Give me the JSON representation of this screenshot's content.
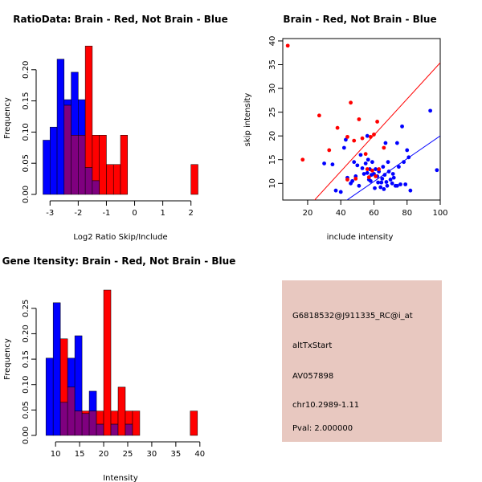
{
  "colors": {
    "red": "#ff0000",
    "blue": "#0000ff",
    "overlap": "#7f007f",
    "panel_bg": "#e8c8c0",
    "pval": "#cc0000"
  },
  "chart_data": [
    {
      "id": "ratio",
      "type": "bar",
      "title": "RatioData: Brain - Red, Not Brain - Blue",
      "xlabel": "Log2 Ratio Skip/Include",
      "ylabel": "Frequency",
      "xlim": [
        -3.35,
        2.35
      ],
      "ylim": [
        0,
        0.25
      ],
      "xticks": [
        -3,
        -2,
        -1,
        0,
        1,
        2
      ],
      "yticks": [
        0.0,
        0.05,
        0.1,
        0.15,
        0.2
      ],
      "ytick_labels": [
        "0.00",
        "0.05",
        "0.10",
        "0.15",
        "0.20"
      ],
      "bin_width": 0.25,
      "bin_starts": [
        -3.25,
        -3.0,
        -2.75,
        -2.5,
        -2.25,
        -2.0,
        -1.75,
        -1.5,
        -1.25,
        -1.0,
        -0.75,
        -0.5,
        -0.25,
        0.0,
        0.25,
        0.5,
        0.75,
        1.0,
        1.25,
        1.5,
        1.75,
        2.0
      ],
      "series": [
        {
          "name": "Not Brain",
          "color": "blue",
          "values": [
            0.087,
            0.108,
            0.217,
            0.152,
            0.196,
            0.152,
            0.043,
            0.022,
            0,
            0,
            0,
            0,
            0,
            0,
            0,
            0,
            0,
            0,
            0,
            0,
            0,
            0
          ]
        },
        {
          "name": "Brain",
          "color": "red",
          "values": [
            0,
            0,
            0,
            0.143,
            0.095,
            0.095,
            0.238,
            0.095,
            0.095,
            0.048,
            0.048,
            0.095,
            0,
            0,
            0,
            0,
            0,
            0,
            0,
            0,
            0,
            0.048
          ]
        }
      ]
    },
    {
      "id": "scatter",
      "type": "scatter",
      "title": "Brain - Red, Not Brain - Blue",
      "xlabel": "include intensity",
      "ylabel": "skip intensity",
      "xlim": [
        5,
        100
      ],
      "ylim": [
        6.5,
        40.5
      ],
      "xticks": [
        20,
        40,
        60,
        80,
        100
      ],
      "yticks": [
        10,
        15,
        20,
        25,
        30,
        35,
        40
      ],
      "red_line": [
        [
          15,
          3.0
        ],
        [
          100,
          35.4
        ]
      ],
      "blue_line": [
        [
          25,
          2.0
        ],
        [
          100,
          20.0
        ]
      ],
      "red_points": [
        [
          8,
          39
        ],
        [
          17,
          15
        ],
        [
          27,
          24.3
        ],
        [
          33,
          17
        ],
        [
          38,
          21.7
        ],
        [
          44,
          19.8
        ],
        [
          46,
          27
        ],
        [
          48,
          19
        ],
        [
          49,
          11
        ],
        [
          51,
          23.5
        ],
        [
          53,
          19.5
        ],
        [
          55,
          16.2
        ],
        [
          56,
          13
        ],
        [
          57,
          11.3
        ],
        [
          58,
          19.8
        ],
        [
          59,
          12.7
        ],
        [
          60,
          20.3
        ],
        [
          61,
          11.5
        ],
        [
          62,
          23
        ],
        [
          63,
          13
        ],
        [
          44,
          10.8
        ],
        [
          66,
          17.5
        ]
      ],
      "blue_points": [
        [
          30,
          14.2
        ],
        [
          35,
          14
        ],
        [
          37,
          8.5
        ],
        [
          40,
          8.2
        ],
        [
          42,
          17.5
        ],
        [
          44,
          11.2
        ],
        [
          46,
          10
        ],
        [
          48,
          14.5
        ],
        [
          49,
          11.5
        ],
        [
          50,
          13.8
        ],
        [
          51,
          9.5
        ],
        [
          52,
          16
        ],
        [
          53,
          13.2
        ],
        [
          54,
          12
        ],
        [
          55,
          14.2
        ],
        [
          56,
          12.2
        ],
        [
          56.5,
          15
        ],
        [
          57,
          10.8
        ],
        [
          57.5,
          13
        ],
        [
          58,
          10.5
        ],
        [
          58.5,
          11.8
        ],
        [
          59,
          14.5
        ],
        [
          60,
          12
        ],
        [
          60.5,
          9
        ],
        [
          61,
          13
        ],
        [
          62,
          11.5
        ],
        [
          62.5,
          10.2
        ],
        [
          63,
          12.5
        ],
        [
          64,
          9.2
        ],
        [
          64.5,
          10.2
        ],
        [
          65,
          11
        ],
        [
          65.5,
          13.5
        ],
        [
          66,
          8.8
        ],
        [
          66.5,
          11.8
        ],
        [
          67,
          18.5
        ],
        [
          67.5,
          10.3
        ],
        [
          68,
          9.5
        ],
        [
          68.5,
          14.5
        ],
        [
          69,
          12.5
        ],
        [
          70,
          10.8
        ],
        [
          71,
          10
        ],
        [
          71.5,
          12
        ],
        [
          72,
          11.2
        ],
        [
          73,
          9.5
        ],
        [
          74,
          9.5
        ],
        [
          75,
          13.5
        ],
        [
          76,
          9.8
        ],
        [
          77,
          22
        ],
        [
          78,
          14.5
        ],
        [
          79,
          9.8
        ],
        [
          80,
          17
        ],
        [
          81,
          15.5
        ],
        [
          82,
          8.5
        ],
        [
          43,
          19.2
        ],
        [
          56,
          20
        ],
        [
          94,
          25.3
        ],
        [
          98,
          12.8
        ],
        [
          47,
          10.5
        ],
        [
          74,
          18.5
        ]
      ]
    },
    {
      "id": "gene",
      "type": "bar",
      "title": "Gene Itensity: Brain - Red, Not Brain - Blue",
      "xlabel": "Intensity",
      "ylabel": "Frequency",
      "xlim": [
        6.8,
        40.2
      ],
      "ylim": [
        0,
        0.305
      ],
      "xticks": [
        10,
        15,
        20,
        25,
        30,
        35,
        40
      ],
      "yticks": [
        0.0,
        0.05,
        0.1,
        0.15,
        0.2,
        0.25
      ],
      "ytick_labels": [
        "0.00",
        "0.05",
        "0.10",
        "0.15",
        "0.20",
        "0.25"
      ],
      "bin_width": 1.5,
      "bin_starts": [
        8,
        9.5,
        11,
        12.5,
        14,
        15.5,
        17,
        18.5,
        20,
        21.5,
        23,
        24.5,
        26,
        27.5,
        29,
        30.5,
        32,
        33.5,
        35,
        36.5,
        38
      ],
      "series": [
        {
          "name": "Not Brain",
          "color": "blue",
          "values": [
            0.152,
            0.261,
            0.065,
            0.152,
            0.196,
            0.043,
            0.087,
            0.022,
            0,
            0.022,
            0,
            0.022,
            0,
            0,
            0,
            0,
            0,
            0,
            0,
            0,
            0
          ]
        },
        {
          "name": "Brain",
          "color": "red",
          "values": [
            0,
            0,
            0.19,
            0.095,
            0.048,
            0.048,
            0.048,
            0.048,
            0.286,
            0.048,
            0.095,
            0.048,
            0.048,
            0,
            0,
            0,
            0,
            0,
            0,
            0,
            0.048
          ]
        }
      ]
    }
  ],
  "info_panel": {
    "probe": "G6818532@J911335_RC@i_at",
    "event": "altTxStart",
    "accession": "AV057898",
    "location": "chr10.2989-1.11",
    "pval": "Pval: 2.000000"
  }
}
